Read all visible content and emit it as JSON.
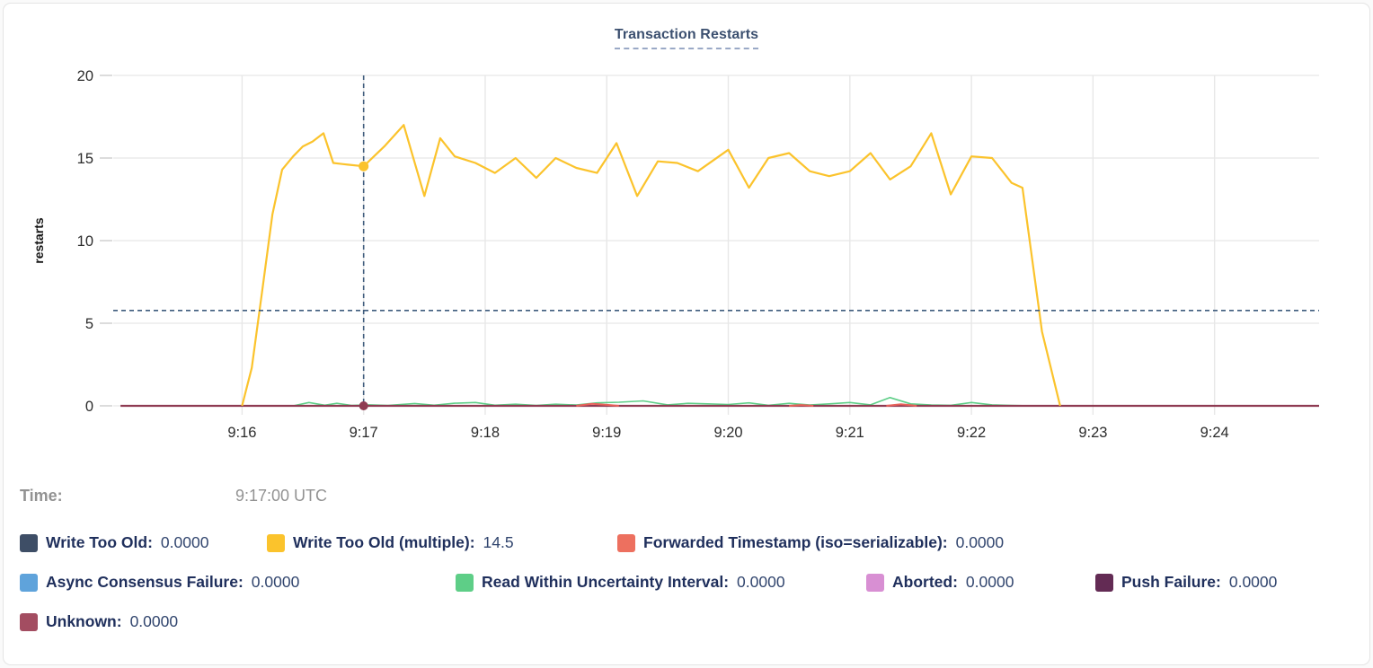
{
  "tooltip": {
    "label": "Time:",
    "value": "9:17:00 UTC"
  },
  "legend": {
    "rows": [
      [
        {
          "label": "Write Too Old",
          "value": "0.0000",
          "color": "#3e4e66"
        },
        {
          "label": "Write Too Old (multiple)",
          "value": "14.5",
          "color": "#fbc32c"
        },
        {
          "label": "Forwarded Timestamp (iso=serializable)",
          "value": "0.0000",
          "color": "#ed705f"
        }
      ],
      [
        {
          "label": "Async Consensus Failure",
          "value": "0.0000",
          "color": "#5fa3db"
        },
        {
          "label": "Read Within Uncertainty Interval",
          "value": "0.0000",
          "color": "#5ece87"
        },
        {
          "label": "Aborted",
          "value": "0.0000",
          "color": "#d88fd3"
        },
        {
          "label": "Push Failure",
          "value": "0.0000",
          "color": "#632b54"
        }
      ],
      [
        {
          "label": "Unknown",
          "value": "0.0000",
          "color": "#a34d61"
        }
      ]
    ]
  },
  "chart_data": {
    "type": "line",
    "title": "Transaction Restarts",
    "ylabel": "restarts",
    "xlabel": "",
    "x_domain": [
      -0.06,
      9.86
    ],
    "x_domain_note": "minutes after 9:15 UTC",
    "y_domain": [
      0,
      20
    ],
    "y_ticks": [
      0,
      5,
      10,
      15,
      20
    ],
    "x_ticks": [
      {
        "t": 1,
        "label": "9:16"
      },
      {
        "t": 2,
        "label": "9:17"
      },
      {
        "t": 3,
        "label": "9:18"
      },
      {
        "t": 4,
        "label": "9:19"
      },
      {
        "t": 5,
        "label": "9:20"
      },
      {
        "t": 6,
        "label": "9:21"
      },
      {
        "t": 7,
        "label": "9:22"
      },
      {
        "t": 8,
        "label": "9:23"
      },
      {
        "t": 9,
        "label": "9:24"
      }
    ],
    "grid": true,
    "legend_position": "bottom",
    "hover": {
      "t": 2.0,
      "time": "9:17:00 UTC",
      "guide_value": 5.77,
      "guide_color": "#3f5c7d",
      "points": [
        {
          "t": 2.0,
          "v": 14.5,
          "color": "#fbc32c",
          "r": 5.5
        },
        {
          "t": 2.0,
          "v": 0.0,
          "color": "#8e3b52",
          "r": 5.0
        }
      ]
    },
    "series": [
      {
        "name": "Read Within Uncertainty Interval",
        "color": "#5ece87",
        "width": 1.6,
        "paths": [
          [
            [
              1.42,
              0
            ],
            [
              1.55,
              0.2
            ],
            [
              1.68,
              0.04
            ],
            [
              1.78,
              0.15
            ],
            [
              1.9,
              0.02
            ],
            [
              2.05,
              0.06
            ],
            [
              2.2,
              0.02
            ],
            [
              2.42,
              0.14
            ],
            [
              2.58,
              0.04
            ],
            [
              2.75,
              0.16
            ],
            [
              2.92,
              0.2
            ],
            [
              3.08,
              0.04
            ],
            [
              3.25,
              0.1
            ],
            [
              3.42,
              0.02
            ],
            [
              3.58,
              0.1
            ],
            [
              3.75,
              0.05
            ],
            [
              3.92,
              0.18
            ],
            [
              4.1,
              0.22
            ],
            [
              4.3,
              0.3
            ],
            [
              4.5,
              0.06
            ],
            [
              4.67,
              0.15
            ],
            [
              4.83,
              0.12
            ],
            [
              5.0,
              0.08
            ],
            [
              5.17,
              0.18
            ],
            [
              5.33,
              0.03
            ],
            [
              5.5,
              0.15
            ],
            [
              5.67,
              0.05
            ],
            [
              5.83,
              0.12
            ],
            [
              6.0,
              0.2
            ],
            [
              6.17,
              0.06
            ],
            [
              6.33,
              0.5
            ],
            [
              6.5,
              0.12
            ],
            [
              6.67,
              0.05
            ],
            [
              6.83,
              0.03
            ],
            [
              7.0,
              0.2
            ],
            [
              7.17,
              0.06
            ],
            [
              7.33,
              0.02
            ],
            [
              7.5,
              0
            ]
          ]
        ]
      },
      {
        "name": "Unknown",
        "color": "#8e3b52",
        "width": 2.2,
        "paths": [
          [
            [
              0.0,
              0
            ],
            [
              9.86,
              0
            ]
          ]
        ]
      },
      {
        "name": "Forwarded Timestamp (iso=serializable)",
        "color": "#e8615a",
        "width": 2,
        "paths": [
          [
            [
              3.75,
              0
            ],
            [
              3.88,
              0.12
            ],
            [
              4.0,
              0.06
            ],
            [
              4.1,
              0
            ]
          ],
          [
            [
              5.5,
              0
            ],
            [
              5.6,
              0.05
            ],
            [
              5.7,
              0
            ]
          ],
          [
            [
              6.3,
              0
            ],
            [
              6.42,
              0.1
            ],
            [
              6.55,
              0
            ]
          ]
        ]
      },
      {
        "name": "Write Too Old (multiple)",
        "color": "#fbc32c",
        "width": 2.2,
        "paths": [
          [
            [
              1.0,
              0
            ],
            [
              1.08,
              2.3
            ],
            [
              1.17,
              7.2
            ],
            [
              1.25,
              11.6
            ],
            [
              1.33,
              14.3
            ],
            [
              1.42,
              15.1
            ],
            [
              1.5,
              15.7
            ],
            [
              1.58,
              16.0
            ],
            [
              1.67,
              16.5
            ],
            [
              1.75,
              14.7
            ],
            [
              1.87,
              14.6
            ],
            [
              2.0,
              14.5
            ],
            [
              2.17,
              15.7
            ],
            [
              2.33,
              17.0
            ],
            [
              2.5,
              12.7
            ],
            [
              2.63,
              16.2
            ],
            [
              2.75,
              15.1
            ],
            [
              2.92,
              14.7
            ],
            [
              3.08,
              14.1
            ],
            [
              3.25,
              15.0
            ],
            [
              3.42,
              13.8
            ],
            [
              3.58,
              15.0
            ],
            [
              3.75,
              14.4
            ],
            [
              3.92,
              14.1
            ],
            [
              4.08,
              15.9
            ],
            [
              4.25,
              12.7
            ],
            [
              4.42,
              14.8
            ],
            [
              4.58,
              14.7
            ],
            [
              4.75,
              14.2
            ],
            [
              5.0,
              15.5
            ],
            [
              5.17,
              13.2
            ],
            [
              5.33,
              15.0
            ],
            [
              5.5,
              15.3
            ],
            [
              5.67,
              14.2
            ],
            [
              5.83,
              13.9
            ],
            [
              6.0,
              14.2
            ],
            [
              6.17,
              15.3
            ],
            [
              6.33,
              13.7
            ],
            [
              6.5,
              14.5
            ],
            [
              6.67,
              16.5
            ],
            [
              6.83,
              12.8
            ],
            [
              7.0,
              15.1
            ],
            [
              7.17,
              15.0
            ],
            [
              7.33,
              13.5
            ],
            [
              7.42,
              13.2
            ],
            [
              7.58,
              4.5
            ],
            [
              7.73,
              0
            ]
          ]
        ]
      }
    ]
  }
}
